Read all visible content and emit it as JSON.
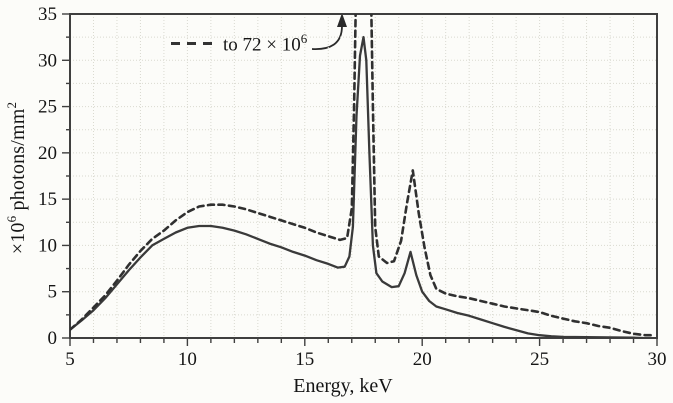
{
  "figure": {
    "xlabel": "Energy, keV",
    "ylabel": {
      "base1": "×10",
      "sup1": "6",
      "base2": " photons/mm",
      "sup2": "2"
    },
    "annotation": {
      "text": "to 72 × 10",
      "sup": "6"
    }
  },
  "chart_data": {
    "type": "line",
    "title": "",
    "xlabel": "Energy, keV",
    "ylabel": "×10⁶ photons/mm²",
    "xlim": [
      5,
      30
    ],
    "ylim": [
      0,
      35
    ],
    "x_major_ticks": [
      5,
      10,
      15,
      20,
      25,
      30
    ],
    "x_minor_tick_step": 1,
    "y_major_ticks": [
      0,
      5,
      10,
      15,
      20,
      25,
      30,
      35
    ],
    "y_minor_tick_step": 2.5,
    "grid": {
      "vertical_step_kev": 1,
      "horizontal_step": 2.5,
      "style": "faint-dotted",
      "on": true
    },
    "legend_position": "none",
    "frame": "full-box",
    "annotation": {
      "label": "to 72 × 10⁶",
      "points_to": "dashed-curve Kα peak near 17.5 keV, off scale"
    },
    "series": [
      {
        "name": "solid curve",
        "line_style": "solid",
        "color": "#3a3a3a",
        "points": [
          [
            5,
            0.9
          ],
          [
            5.5,
            1.9
          ],
          [
            6,
            3.0
          ],
          [
            6.5,
            4.3
          ],
          [
            7,
            5.8
          ],
          [
            7.5,
            7.3
          ],
          [
            8,
            8.7
          ],
          [
            8.5,
            10.0
          ],
          [
            9,
            10.7
          ],
          [
            9.5,
            11.4
          ],
          [
            10,
            11.9
          ],
          [
            10.5,
            12.1
          ],
          [
            11,
            12.1
          ],
          [
            11.5,
            11.9
          ],
          [
            12,
            11.6
          ],
          [
            12.5,
            11.2
          ],
          [
            13,
            10.7
          ],
          [
            13.5,
            10.2
          ],
          [
            14,
            9.8
          ],
          [
            14.5,
            9.3
          ],
          [
            15,
            8.9
          ],
          [
            15.5,
            8.4
          ],
          [
            16,
            8.0
          ],
          [
            16.4,
            7.6
          ],
          [
            16.7,
            7.7
          ],
          [
            16.9,
            8.8
          ],
          [
            17.05,
            12
          ],
          [
            17.2,
            24
          ],
          [
            17.35,
            30.5
          ],
          [
            17.5,
            32.5
          ],
          [
            17.62,
            30
          ],
          [
            17.75,
            20
          ],
          [
            17.9,
            10
          ],
          [
            18.05,
            7.0
          ],
          [
            18.3,
            6.1
          ],
          [
            18.7,
            5.5
          ],
          [
            19.0,
            5.6
          ],
          [
            19.25,
            7.0
          ],
          [
            19.5,
            9.3
          ],
          [
            19.75,
            6.8
          ],
          [
            20.0,
            5.0
          ],
          [
            20.3,
            4.0
          ],
          [
            20.6,
            3.4
          ],
          [
            21,
            3.1
          ],
          [
            21.5,
            2.7
          ],
          [
            22,
            2.4
          ],
          [
            22.5,
            2.0
          ],
          [
            23,
            1.6
          ],
          [
            23.5,
            1.2
          ],
          [
            24,
            0.85
          ],
          [
            24.5,
            0.5
          ],
          [
            25,
            0.3
          ],
          [
            25.5,
            0.18
          ],
          [
            26,
            0.12
          ],
          [
            27,
            0.1
          ],
          [
            28,
            0.07
          ],
          [
            29,
            0.03
          ],
          [
            29.4,
            0.0
          ]
        ]
      },
      {
        "name": "dashed curve (peak reaches 72×10⁶ at ~17.5 keV)",
        "line_style": "dashed",
        "color": "#303030",
        "points": [
          [
            5,
            0.9
          ],
          [
            5.5,
            2.0
          ],
          [
            6,
            3.3
          ],
          [
            6.5,
            4.6
          ],
          [
            7,
            6.2
          ],
          [
            7.5,
            7.9
          ],
          [
            8,
            9.4
          ],
          [
            8.5,
            10.7
          ],
          [
            9,
            11.6
          ],
          [
            9.5,
            12.7
          ],
          [
            10,
            13.6
          ],
          [
            10.5,
            14.2
          ],
          [
            11,
            14.4
          ],
          [
            11.5,
            14.4
          ],
          [
            12,
            14.2
          ],
          [
            12.5,
            13.9
          ],
          [
            13,
            13.5
          ],
          [
            13.5,
            13.1
          ],
          [
            14,
            12.7
          ],
          [
            14.5,
            12.3
          ],
          [
            15,
            11.9
          ],
          [
            15.5,
            11.4
          ],
          [
            16,
            11.0
          ],
          [
            16.5,
            10.6
          ],
          [
            16.8,
            10.8
          ],
          [
            17.0,
            14
          ],
          [
            17.1,
            25
          ],
          [
            17.25,
            48
          ],
          [
            17.4,
            68
          ],
          [
            17.5,
            72
          ],
          [
            17.6,
            68
          ],
          [
            17.75,
            48
          ],
          [
            17.9,
            25
          ],
          [
            18.0,
            12
          ],
          [
            18.15,
            8.8
          ],
          [
            18.5,
            8.1
          ],
          [
            18.8,
            8.3
          ],
          [
            19.1,
            10.5
          ],
          [
            19.35,
            14.5
          ],
          [
            19.6,
            18.1
          ],
          [
            19.85,
            13.5
          ],
          [
            20.1,
            9.8
          ],
          [
            20.35,
            6.8
          ],
          [
            20.6,
            5.3
          ],
          [
            21,
            4.8
          ],
          [
            21.5,
            4.5
          ],
          [
            22,
            4.3
          ],
          [
            22.5,
            4.0
          ],
          [
            23,
            3.7
          ],
          [
            23.5,
            3.4
          ],
          [
            24,
            3.2
          ],
          [
            24.5,
            3.0
          ],
          [
            25,
            2.8
          ],
          [
            25.5,
            2.4
          ],
          [
            26,
            2.1
          ],
          [
            26.5,
            1.8
          ],
          [
            27,
            1.6
          ],
          [
            27.5,
            1.3
          ],
          [
            28,
            1.1
          ],
          [
            28.5,
            0.75
          ],
          [
            29,
            0.45
          ],
          [
            29.5,
            0.3
          ],
          [
            29.9,
            0.3
          ]
        ]
      }
    ]
  }
}
